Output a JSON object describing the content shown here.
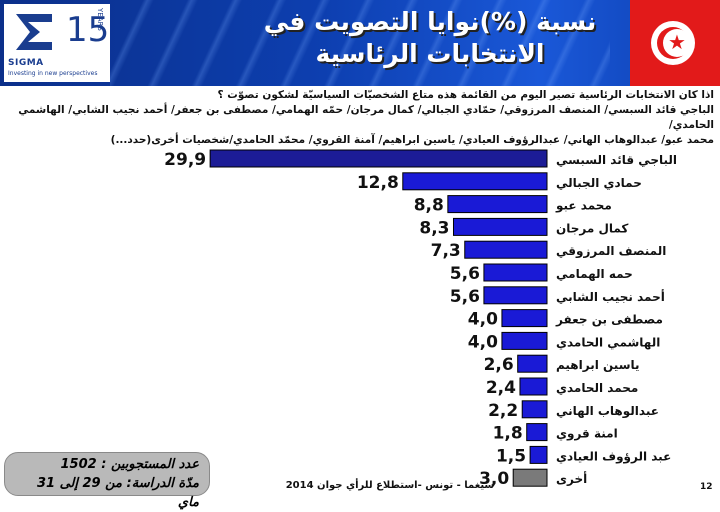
{
  "header": {
    "title_line1": "نسبة (%)نوايا التصويت في",
    "title_line2": "الانتخابات الرئاسية",
    "logo_brand": "SIGMA",
    "logo_years_number": "15",
    "logo_years_label": "YEARS",
    "logo_tagline": "Investing in new perspectives",
    "accent_color": "#1a3fc8",
    "flag_color": "#e21a1a"
  },
  "question": {
    "line1": "اذا كان الانتخابات الرئاسية تصير اليوم  من القائمة هذه متاع الشخصيّات السياسيّة لشكون تصوّت ؟",
    "line2": "الباجي قائد السبسي/ المنصف المرزوقي/ حمّادي الجبالي/ كمال مرجان/ حمّه الهمامي/ مصطفى بن جعفر/ أحمد نجيب الشابي/ الهاشمي الحامدي/",
    "line3": "محمد عبو/ عبدالوهاب الهاني/ عبدالرؤوف العيادي/ ياسين ابراهيم/ آمنة القروي/ محمّد الحامدي/شخصيات أخرى(حدد...)"
  },
  "chart_data": {
    "type": "bar",
    "orientation": "horizontal",
    "categories": [
      "الباجي قائد السبسي",
      "حمادي الجبالي",
      "محمد عبو",
      "كمال مرجان",
      "المنصف المرزوقي",
      "حمه الهمامي",
      "أحمد نجيب الشابي",
      "مصطفى بن جعفر",
      "الهاشمي الحامدي",
      "ياسين ابراهيم",
      "محمد الحامدي",
      "عبدالوهاب الهاني",
      "امنة قروي",
      "عبد الرؤوف العيادي",
      "أخرى"
    ],
    "values": [
      29.9,
      12.8,
      8.8,
      8.3,
      7.3,
      5.6,
      5.6,
      4.0,
      4.0,
      2.6,
      2.4,
      2.2,
      1.8,
      1.5,
      3.0
    ],
    "value_labels": [
      "29,9",
      "12,8",
      "8,8",
      "8,3",
      "7,3",
      "5,6",
      "5,6",
      "4,0",
      "4,0",
      "2,6",
      "2,4",
      "2,2",
      "1,8",
      "1,5",
      "3,0"
    ],
    "bar_colors": [
      "#1c1c96",
      "#1a1ad6",
      "#1a1ad6",
      "#1a1ad6",
      "#1a1ad6",
      "#1a1ad6",
      "#1a1ad6",
      "#1a1ad6",
      "#1a1ad6",
      "#1a1ad6",
      "#1a1ad6",
      "#1a1ad6",
      "#1a1ad6",
      "#1a1ad6",
      "#7a7a7a"
    ],
    "bar_edge_color": "#000000",
    "title": "",
    "xlabel": "",
    "ylabel": "",
    "xlim": [
      0,
      30
    ],
    "grid": false,
    "legend": "none"
  },
  "footer": {
    "sample_size": "عدد المستجوبين : 1502",
    "study_period": "مدّة الدراسة: من 29 إلى 31 ماي",
    "source": "سيغما - تونس -استطلاع للرأي جوان 2014",
    "page_number": "12"
  }
}
